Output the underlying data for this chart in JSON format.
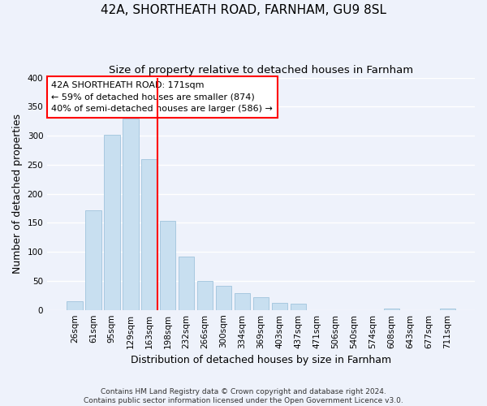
{
  "title": "42A, SHORTHEATH ROAD, FARNHAM, GU9 8SL",
  "subtitle": "Size of property relative to detached houses in Farnham",
  "xlabel": "Distribution of detached houses by size in Farnham",
  "ylabel": "Number of detached properties",
  "bar_labels": [
    "26sqm",
    "61sqm",
    "95sqm",
    "129sqm",
    "163sqm",
    "198sqm",
    "232sqm",
    "266sqm",
    "300sqm",
    "334sqm",
    "369sqm",
    "403sqm",
    "437sqm",
    "471sqm",
    "506sqm",
    "540sqm",
    "574sqm",
    "608sqm",
    "643sqm",
    "677sqm",
    "711sqm"
  ],
  "bar_heights": [
    15,
    172,
    301,
    330,
    259,
    153,
    92,
    50,
    42,
    29,
    22,
    12,
    11,
    0,
    0,
    0,
    0,
    3,
    0,
    0,
    3
  ],
  "bar_color": "#c8dff0",
  "bar_edge_color": "#a0c4dc",
  "ref_line_index": 4,
  "ref_line_color": "red",
  "annotation_line1": "42A SHORTHEATH ROAD: 171sqm",
  "annotation_line2": "← 59% of detached houses are smaller (874)",
  "annotation_line3": "40% of semi-detached houses are larger (586) →",
  "annotation_box_color": "white",
  "annotation_box_edge": "red",
  "ylim": [
    0,
    400
  ],
  "yticks": [
    0,
    50,
    100,
    150,
    200,
    250,
    300,
    350,
    400
  ],
  "footer_line1": "Contains HM Land Registry data © Crown copyright and database right 2024.",
  "footer_line2": "Contains public sector information licensed under the Open Government Licence v3.0.",
  "background_color": "#eef2fb",
  "plot_bg_color": "#eef2fb",
  "grid_color": "white",
  "title_fontsize": 11,
  "subtitle_fontsize": 9.5,
  "axis_label_fontsize": 9,
  "tick_fontsize": 7.5,
  "annotation_fontsize": 8,
  "footer_fontsize": 6.5
}
